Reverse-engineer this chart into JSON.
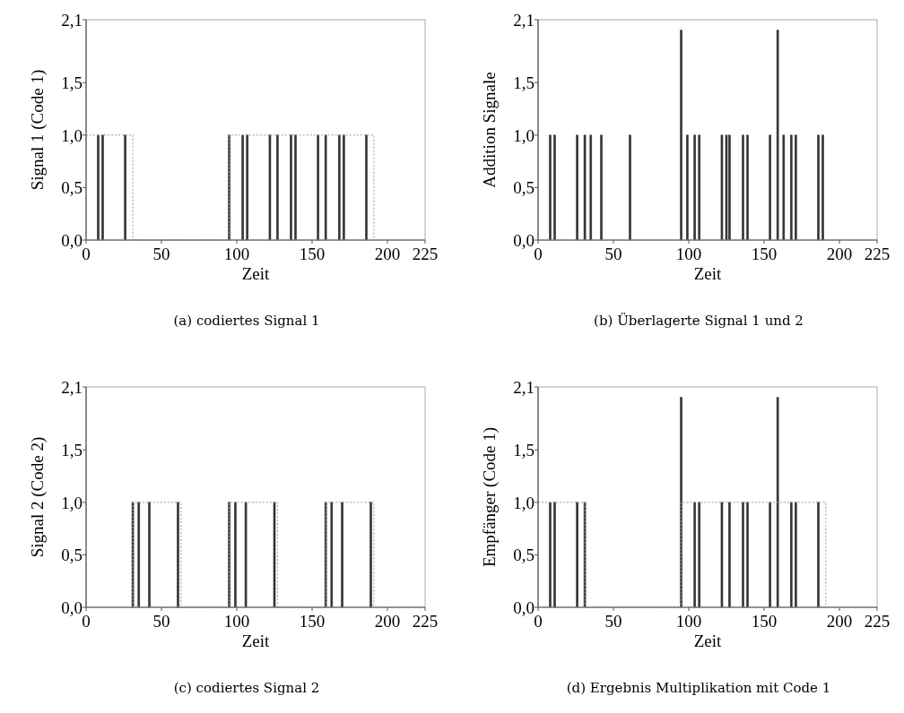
{
  "chart_data": [
    {
      "type": "bar",
      "title": "(a) codiertes Signal 1",
      "xlabel": "Zeit",
      "ylabel": "Signal 1 (Code 1)",
      "xlim": [
        0,
        225
      ],
      "ylim": [
        0,
        2.1
      ],
      "xticks": [
        0,
        50,
        100,
        150,
        200,
        225
      ],
      "yticks": [
        {
          "value": 0,
          "label": "0,0"
        },
        {
          "value": 0.5,
          "label": "0,5"
        },
        {
          "value": 1,
          "label": "1,0"
        },
        {
          "value": 1.5,
          "label": "1,5"
        },
        {
          "value": 2.1,
          "label": "2,1"
        }
      ],
      "grid": false,
      "series": [
        {
          "color": "#333333",
          "x": [
            8,
            11,
            26,
            95,
            104,
            107,
            122,
            127,
            136,
            139,
            154,
            159,
            168,
            171,
            186
          ],
          "values": [
            1,
            1,
            1,
            1,
            1,
            1,
            1,
            1,
            1,
            1,
            1,
            1,
            1,
            1,
            1
          ]
        },
        {
          "type": "line",
          "color": "#999999",
          "line_style": "dotted",
          "x": [
            0,
            31,
            31,
            95,
            95,
            191,
            191
          ],
          "values": [
            1,
            1,
            0,
            0,
            1,
            1,
            0
          ]
        }
      ]
    },
    {
      "type": "bar",
      "title": "(b) Überlagerte Signal 1 und 2",
      "xlabel": "Zeit",
      "ylabel": "Addition Signale",
      "xlim": [
        0,
        225
      ],
      "ylim": [
        0,
        2.1
      ],
      "xticks": [
        0,
        50,
        100,
        150,
        200,
        225
      ],
      "yticks": [
        {
          "value": 0,
          "label": "0,0"
        },
        {
          "value": 0.5,
          "label": "0,5"
        },
        {
          "value": 1,
          "label": "1,0"
        },
        {
          "value": 1.5,
          "label": "1,5"
        },
        {
          "value": 2.1,
          "label": "2,1"
        }
      ],
      "grid": false,
      "series": [
        {
          "color": "#333333",
          "x": [
            8,
            11,
            26,
            31,
            35,
            42,
            61,
            95,
            99,
            104,
            107,
            122,
            125,
            127,
            136,
            139,
            154,
            159,
            163,
            168,
            171,
            186,
            189
          ],
          "values": [
            1,
            1,
            1,
            1,
            1,
            1,
            1,
            2,
            1,
            1,
            1,
            1,
            1,
            1,
            1,
            1,
            1,
            2,
            1,
            1,
            1,
            1,
            1
          ]
        }
      ]
    },
    {
      "type": "bar",
      "title": "(c) codiertes Signal 2",
      "xlabel": "Zeit",
      "ylabel": "Signal 2 (Code 2)",
      "xlim": [
        0,
        225
      ],
      "ylim": [
        0,
        2.1
      ],
      "xticks": [
        0,
        50,
        100,
        150,
        200,
        225
      ],
      "yticks": [
        {
          "value": 0,
          "label": "0,0"
        },
        {
          "value": 0.5,
          "label": "0,5"
        },
        {
          "value": 1,
          "label": "1,0"
        },
        {
          "value": 1.5,
          "label": "1,5"
        },
        {
          "value": 2.1,
          "label": "2,1"
        }
      ],
      "grid": false,
      "series": [
        {
          "color": "#333333",
          "x": [
            31,
            35,
            42,
            61,
            95,
            99,
            106,
            125,
            159,
            163,
            170,
            189
          ],
          "values": [
            1,
            1,
            1,
            1,
            1,
            1,
            1,
            1,
            1,
            1,
            1,
            1
          ]
        },
        {
          "type": "line",
          "color": "#999999",
          "line_style": "dotted",
          "x": [
            31,
            31,
            63,
            63,
            95,
            95,
            127,
            127,
            159,
            159,
            191,
            191
          ],
          "values": [
            0,
            1,
            1,
            0,
            0,
            1,
            1,
            0,
            0,
            1,
            1,
            0
          ]
        }
      ]
    },
    {
      "type": "bar",
      "title": "(d) Ergebnis Multiplikation mit Code 1",
      "xlabel": "Zeit",
      "ylabel": "Empfänger (Code 1)",
      "xlim": [
        0,
        225
      ],
      "ylim": [
        0,
        2.1
      ],
      "xticks": [
        0,
        50,
        100,
        150,
        200,
        225
      ],
      "yticks": [
        {
          "value": 0,
          "label": "0,0"
        },
        {
          "value": 0.5,
          "label": "0,5"
        },
        {
          "value": 1,
          "label": "1,0"
        },
        {
          "value": 1.5,
          "label": "1,5"
        },
        {
          "value": 2.1,
          "label": "2,1"
        }
      ],
      "grid": false,
      "series": [
        {
          "color": "#333333",
          "x": [
            8,
            11,
            26,
            31,
            95,
            104,
            107,
            122,
            127,
            136,
            139,
            154,
            159,
            168,
            171,
            186
          ],
          "values": [
            1,
            1,
            1,
            1,
            2,
            1,
            1,
            1,
            1,
            1,
            1,
            1,
            2,
            1,
            1,
            1
          ]
        },
        {
          "type": "line",
          "color": "#999999",
          "line_style": "dotted",
          "x": [
            0,
            31,
            31,
            95,
            95,
            191,
            191
          ],
          "values": [
            1,
            1,
            0,
            0,
            1,
            1,
            0
          ]
        }
      ]
    }
  ]
}
